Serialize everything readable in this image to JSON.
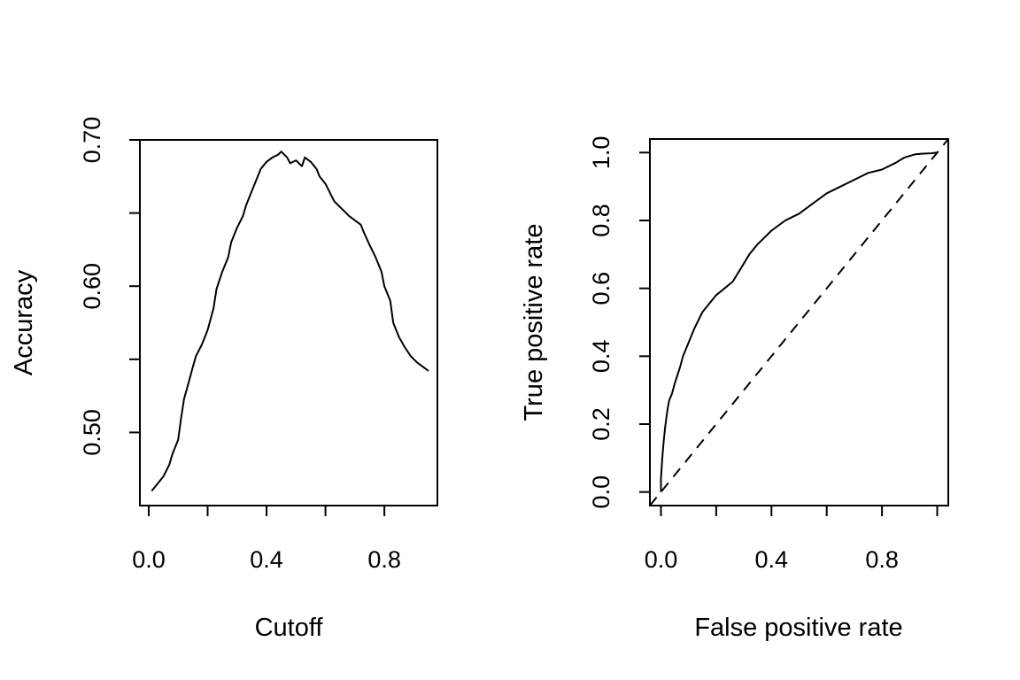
{
  "chart_data": [
    {
      "type": "line",
      "xlabel": "Cutoff",
      "ylabel": "Accuracy",
      "xlim": [
        -0.03,
        0.98
      ],
      "ylim": [
        0.45,
        0.7
      ],
      "x_ticks": [
        0.0,
        0.2,
        0.4,
        0.6,
        0.8
      ],
      "x_tick_labels": [
        "0.0",
        "",
        "0.4",
        "",
        "0.8"
      ],
      "y_ticks": [
        0.5,
        0.55,
        0.6,
        0.65,
        0.7
      ],
      "y_tick_labels": [
        "0.50",
        "",
        "0.60",
        "",
        "0.70"
      ],
      "grid": false,
      "series": [
        {
          "x": [
            0.01,
            0.03,
            0.05,
            0.07,
            0.08,
            0.1,
            0.11,
            0.12,
            0.13,
            0.15,
            0.16,
            0.18,
            0.2,
            0.22,
            0.23,
            0.25,
            0.27,
            0.28,
            0.3,
            0.32,
            0.33,
            0.35,
            0.37,
            0.38,
            0.4,
            0.42,
            0.44,
            0.45,
            0.47,
            0.48,
            0.5,
            0.52,
            0.53,
            0.55,
            0.57,
            0.58,
            0.6,
            0.62,
            0.63,
            0.65,
            0.67,
            0.68,
            0.7,
            0.72,
            0.73,
            0.75,
            0.77,
            0.79,
            0.8,
            0.82,
            0.83,
            0.85,
            0.87,
            0.89,
            0.91,
            0.93,
            0.95
          ],
          "y": [
            0.46,
            0.465,
            0.47,
            0.478,
            0.485,
            0.495,
            0.51,
            0.523,
            0.53,
            0.545,
            0.552,
            0.56,
            0.57,
            0.585,
            0.598,
            0.61,
            0.62,
            0.63,
            0.64,
            0.648,
            0.655,
            0.665,
            0.675,
            0.68,
            0.685,
            0.688,
            0.69,
            0.692,
            0.688,
            0.684,
            0.686,
            0.682,
            0.688,
            0.685,
            0.68,
            0.675,
            0.67,
            0.662,
            0.658,
            0.654,
            0.65,
            0.648,
            0.645,
            0.642,
            0.637,
            0.628,
            0.62,
            0.61,
            0.6,
            0.59,
            0.575,
            0.565,
            0.558,
            0.552,
            0.548,
            0.545,
            0.542
          ]
        }
      ]
    },
    {
      "type": "line",
      "xlabel": "False positive rate",
      "ylabel": "True positive rate",
      "xlim": [
        -0.04,
        1.04
      ],
      "ylim": [
        -0.04,
        1.04
      ],
      "x_ticks": [
        0.0,
        0.2,
        0.4,
        0.6,
        0.8,
        1.0
      ],
      "x_tick_labels": [
        "0.0",
        "",
        "0.4",
        "",
        "0.8",
        ""
      ],
      "y_ticks": [
        0.0,
        0.2,
        0.4,
        0.6,
        0.8,
        1.0
      ],
      "y_tick_labels": [
        "0.0",
        "0.2",
        "0.4",
        "0.6",
        "0.8",
        "1.0"
      ],
      "grid": false,
      "series": [
        {
          "style": "solid",
          "x": [
            0.0,
            0.0,
            0.005,
            0.01,
            0.015,
            0.02,
            0.025,
            0.03,
            0.04,
            0.05,
            0.06,
            0.07,
            0.08,
            0.1,
            0.12,
            0.15,
            0.18,
            0.2,
            0.23,
            0.26,
            0.29,
            0.32,
            0.35,
            0.4,
            0.45,
            0.5,
            0.55,
            0.6,
            0.65,
            0.7,
            0.75,
            0.8,
            0.85,
            0.88,
            0.9,
            0.92,
            0.95,
            0.98,
            1.0
          ],
          "y": [
            0.0,
            0.04,
            0.1,
            0.15,
            0.19,
            0.22,
            0.25,
            0.27,
            0.29,
            0.32,
            0.345,
            0.37,
            0.4,
            0.44,
            0.48,
            0.53,
            0.56,
            0.58,
            0.6,
            0.62,
            0.66,
            0.7,
            0.73,
            0.77,
            0.8,
            0.82,
            0.85,
            0.88,
            0.9,
            0.92,
            0.94,
            0.95,
            0.97,
            0.985,
            0.99,
            0.995,
            0.997,
            0.998,
            1.0
          ]
        },
        {
          "style": "dashed",
          "x": [
            -0.04,
            1.04
          ],
          "y": [
            -0.04,
            1.04
          ]
        }
      ]
    }
  ]
}
